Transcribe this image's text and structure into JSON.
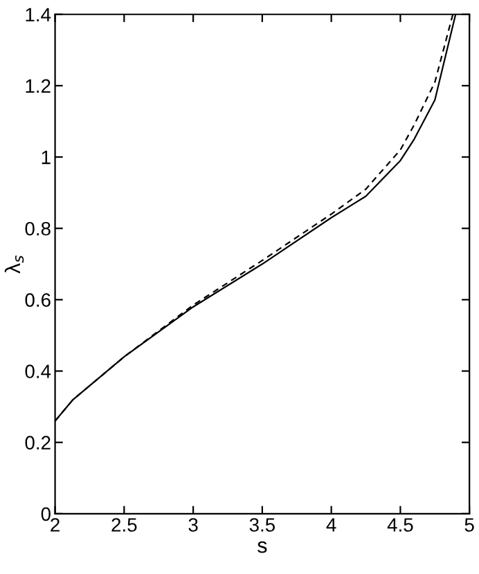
{
  "chart_data": {
    "type": "line",
    "xlabel": "s",
    "ylabel": "λ$_{s}$",
    "xlim": [
      2,
      5
    ],
    "ylim": [
      0,
      1.4
    ],
    "xticks": [
      2,
      2.5,
      3,
      3.5,
      4,
      4.5,
      5
    ],
    "yticks": [
      0,
      0.2,
      0.4,
      0.6,
      0.8,
      1,
      1.2,
      1.4
    ],
    "grid": false,
    "legend": false,
    "series": [
      {
        "color": "#000000",
        "line_style": "solid",
        "x": [
          2,
          2.13,
          2.5,
          3,
          3.5,
          4,
          4.25,
          4.5,
          4.6,
          4.75,
          4.9
        ],
        "values": [
          0.26,
          0.32,
          0.44,
          0.58,
          0.7,
          0.83,
          0.89,
          0.99,
          1.05,
          1.16,
          1.4
        ]
      },
      {
        "color": "#000000",
        "line_style": "dashed",
        "x": [
          2,
          2.13,
          2.5,
          3,
          3.5,
          4,
          4.25,
          4.5,
          4.6,
          4.75,
          4.88
        ],
        "values": [
          0.26,
          0.32,
          0.44,
          0.585,
          0.71,
          0.84,
          0.91,
          1.02,
          1.09,
          1.21,
          1.4
        ]
      }
    ]
  }
}
